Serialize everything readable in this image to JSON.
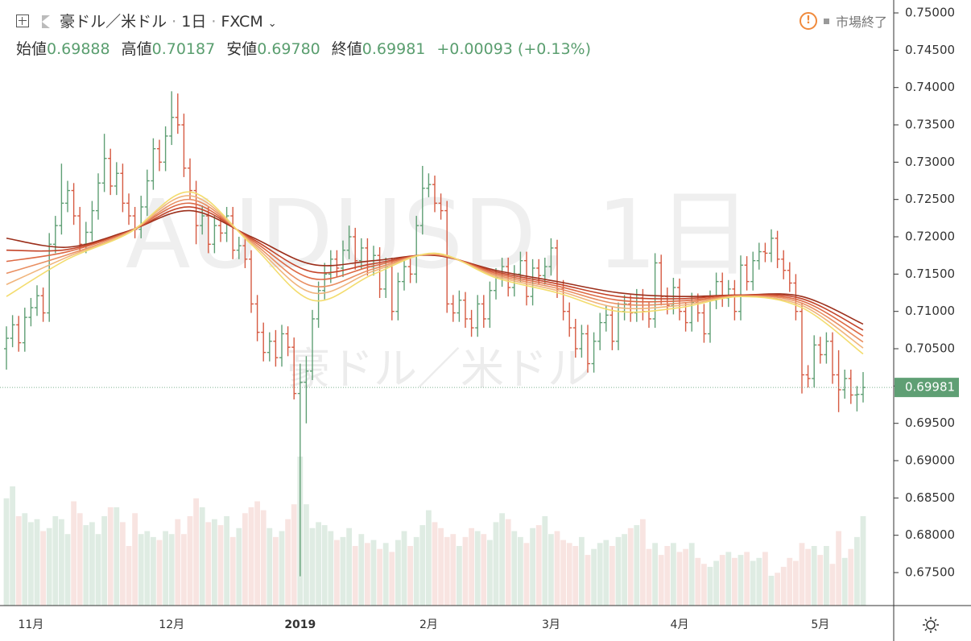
{
  "chart_data": {
    "type": "ohlc",
    "symbol": "豪ドル／米ドル",
    "interval": "1日",
    "source": "FXCM",
    "status": "市場終了",
    "watermark": "AUDUSD, 1日",
    "watermark_sub": "豪ドル／米ドル",
    "legend": [
      {
        "label": "始値",
        "value": "0.69888"
      },
      {
        "label": "高値",
        "value": "0.70187"
      },
      {
        "label": "安値",
        "value": "0.69780"
      },
      {
        "label": "終値",
        "value": "0.69981"
      }
    ],
    "change": "+0.00093",
    "change_pct": "(+0.13%)",
    "up_color": "#5f9f74",
    "down_color": "#d65a42",
    "categories": [
      null,
      null,
      null,
      null,
      "11月",
      null,
      null,
      null,
      null,
      null,
      null,
      null,
      null,
      null,
      null,
      null,
      null,
      null,
      null,
      null,
      null,
      null,
      null,
      null,
      null,
      null,
      null,
      "12月",
      null,
      null,
      null,
      null,
      null,
      null,
      null,
      null,
      null,
      null,
      null,
      null,
      null,
      null,
      null,
      null,
      null,
      null,
      null,
      null,
      "2019",
      null,
      null,
      null,
      null,
      null,
      null,
      null,
      null,
      null,
      null,
      null,
      null,
      null,
      null,
      null,
      null,
      null,
      null,
      null,
      null,
      "2月",
      null,
      null,
      null,
      null,
      null,
      null,
      null,
      null,
      null,
      null,
      null,
      null,
      null,
      null,
      null,
      null,
      null,
      null,
      null,
      "3月",
      null,
      null,
      null,
      null,
      null,
      null,
      null,
      null,
      null,
      null,
      null,
      null,
      null,
      null,
      null,
      null,
      null,
      null,
      null,
      null,
      "4月",
      null,
      null,
      null,
      null,
      null,
      null,
      null,
      null,
      null,
      null,
      null,
      null,
      null,
      null,
      null,
      null,
      null,
      null,
      null,
      null,
      null,
      null,
      "5月",
      null,
      null,
      null,
      null,
      null,
      null,
      null
    ],
    "open": [
      0.705,
      0.7064,
      0.7082,
      0.7058,
      0.7092,
      0.7105,
      0.7121,
      0.7098,
      0.719,
      0.7215,
      0.7245,
      0.7262,
      0.7228,
      0.719,
      0.7206,
      0.7235,
      0.7272,
      0.7305,
      0.7268,
      0.7285,
      0.7245,
      0.7228,
      0.721,
      0.724,
      0.7275,
      0.7318,
      0.73,
      0.7335,
      0.736,
      0.735,
      0.7292,
      0.7262,
      0.7215,
      0.7228,
      0.719,
      0.7215,
      0.7205,
      0.7228,
      0.7182,
      0.7188,
      0.717,
      0.711,
      0.7072,
      0.7045,
      0.706,
      0.7038,
      0.707,
      0.7052,
      0.699,
      0.7005,
      0.702,
      0.709,
      0.7128,
      0.715,
      0.717,
      0.7158,
      0.7182,
      0.72,
      0.7168,
      0.7185,
      0.716,
      0.7175,
      0.713,
      0.716,
      0.71,
      0.714,
      0.716,
      0.715,
      0.7215,
      0.7265,
      0.727,
      0.7245,
      0.7235,
      0.711,
      0.7098,
      0.7115,
      0.709,
      0.7078,
      0.711,
      0.709,
      0.7128,
      0.7145,
      0.716,
      0.7132,
      0.715,
      0.7168,
      0.712,
      0.7158,
      0.7148,
      0.716,
      0.7185,
      0.713,
      0.71,
      0.7078,
      0.705,
      0.707,
      0.703,
      0.706,
      0.7085,
      0.7095,
      0.706,
      0.71,
      0.711,
      0.7098,
      0.7118,
      0.71,
      0.709,
      0.7165,
      0.712,
      0.7108,
      0.7132,
      0.71,
      0.7085,
      0.7112,
      0.7098,
      0.707,
      0.7115,
      0.714,
      0.7118,
      0.713,
      0.71,
      0.7162,
      0.714,
      0.7168,
      0.718,
      0.7178,
      0.7198,
      0.717,
      0.7155,
      0.7138,
      0.71,
      0.7015,
      0.701,
      0.7055,
      0.7042,
      0.706,
      0.7015,
      0.6995,
      0.701,
      0.6988,
      0.69888
    ],
    "high": [
      0.708,
      0.7095,
      0.7094,
      0.7105,
      0.7118,
      0.7135,
      0.7132,
      0.7205,
      0.7228,
      0.7298,
      0.7275,
      0.7272,
      0.724,
      0.722,
      0.7248,
      0.7285,
      0.7338,
      0.7318,
      0.73,
      0.7298,
      0.7258,
      0.724,
      0.7255,
      0.729,
      0.7332,
      0.733,
      0.7348,
      0.7395,
      0.7392,
      0.7365,
      0.7305,
      0.7275,
      0.7242,
      0.724,
      0.7228,
      0.7228,
      0.724,
      0.724,
      0.72,
      0.72,
      0.7182,
      0.7122,
      0.7085,
      0.7072,
      0.7075,
      0.7082,
      0.708,
      0.7065,
      0.703,
      0.704,
      0.7102,
      0.714,
      0.7165,
      0.7182,
      0.7182,
      0.7195,
      0.7215,
      0.7212,
      0.7198,
      0.7198,
      0.7188,
      0.7186,
      0.7172,
      0.7172,
      0.7152,
      0.7172,
      0.7172,
      0.7228,
      0.7295,
      0.7285,
      0.7282,
      0.7258,
      0.7248,
      0.7122,
      0.7128,
      0.7126,
      0.7102,
      0.7122,
      0.7122,
      0.714,
      0.7158,
      0.7172,
      0.7172,
      0.7162,
      0.718,
      0.718,
      0.717,
      0.717,
      0.7172,
      0.7198,
      0.7196,
      0.7142,
      0.7112,
      0.709,
      0.7082,
      0.7082,
      0.7072,
      0.7098,
      0.7108,
      0.7106,
      0.7112,
      0.7122,
      0.7122,
      0.713,
      0.713,
      0.7112,
      0.7178,
      0.7176,
      0.7132,
      0.7145,
      0.7144,
      0.7112,
      0.7125,
      0.7124,
      0.711,
      0.7128,
      0.7152,
      0.7152,
      0.7142,
      0.7142,
      0.7175,
      0.7174,
      0.718,
      0.7192,
      0.7192,
      0.721,
      0.7208,
      0.7182,
      0.7166,
      0.715,
      0.7112,
      0.7028,
      0.7068,
      0.7066,
      0.7072,
      0.7072,
      0.7048,
      0.7022,
      0.7022,
      0.7,
      0.70187
    ],
    "low": [
      0.7022,
      0.7052,
      0.7046,
      0.7046,
      0.708,
      0.7094,
      0.7086,
      0.7086,
      0.7178,
      0.7203,
      0.7233,
      0.7216,
      0.718,
      0.7178,
      0.7194,
      0.7223,
      0.726,
      0.7256,
      0.7256,
      0.7233,
      0.7216,
      0.7198,
      0.7198,
      0.7228,
      0.7263,
      0.7288,
      0.7288,
      0.7323,
      0.7338,
      0.728,
      0.725,
      0.719,
      0.7203,
      0.7178,
      0.7178,
      0.7193,
      0.7193,
      0.717,
      0.717,
      0.7158,
      0.7098,
      0.706,
      0.7033,
      0.7033,
      0.7026,
      0.7026,
      0.704,
      0.6982,
      0.6745,
      0.695,
      0.7008,
      0.7078,
      0.7116,
      0.7138,
      0.7146,
      0.7146,
      0.717,
      0.7156,
      0.7156,
      0.7148,
      0.7148,
      0.7118,
      0.7118,
      0.7088,
      0.7088,
      0.7128,
      0.7138,
      0.7138,
      0.7203,
      0.7253,
      0.7233,
      0.7223,
      0.7098,
      0.7086,
      0.7086,
      0.7078,
      0.7066,
      0.7066,
      0.7078,
      0.7078,
      0.7116,
      0.7133,
      0.712,
      0.712,
      0.7138,
      0.7108,
      0.7108,
      0.7136,
      0.7136,
      0.7148,
      0.7118,
      0.7088,
      0.7066,
      0.7038,
      0.7038,
      0.7018,
      0.7018,
      0.7048,
      0.7073,
      0.7048,
      0.7048,
      0.7088,
      0.7086,
      0.7086,
      0.7088,
      0.7078,
      0.7078,
      0.7108,
      0.7096,
      0.7096,
      0.7088,
      0.7073,
      0.7073,
      0.7086,
      0.7058,
      0.7058,
      0.7103,
      0.7106,
      0.7106,
      0.7088,
      0.7088,
      0.7128,
      0.7128,
      0.7156,
      0.7166,
      0.7166,
      0.7158,
      0.7143,
      0.7126,
      0.7088,
      0.699,
      0.6998,
      0.6998,
      0.703,
      0.703,
      0.7003,
      0.6965,
      0.6983,
      0.6976,
      0.6966,
      0.6978
    ],
    "close": [
      0.7064,
      0.7082,
      0.7058,
      0.7092,
      0.7105,
      0.7121,
      0.7098,
      0.719,
      0.7215,
      0.7245,
      0.7262,
      0.7228,
      0.719,
      0.7206,
      0.7235,
      0.7272,
      0.7305,
      0.7268,
      0.7285,
      0.7245,
      0.7228,
      0.721,
      0.724,
      0.7275,
      0.7318,
      0.73,
      0.7335,
      0.736,
      0.735,
      0.7292,
      0.7262,
      0.7215,
      0.7228,
      0.719,
      0.7215,
      0.7205,
      0.7228,
      0.7182,
      0.7188,
      0.717,
      0.711,
      0.7072,
      0.7045,
      0.706,
      0.7038,
      0.707,
      0.7052,
      0.699,
      0.7005,
      0.702,
      0.709,
      0.7128,
      0.715,
      0.717,
      0.7158,
      0.7182,
      0.72,
      0.7168,
      0.7185,
      0.716,
      0.7175,
      0.713,
      0.716,
      0.71,
      0.714,
      0.716,
      0.715,
      0.7215,
      0.7265,
      0.727,
      0.7245,
      0.7235,
      0.711,
      0.7098,
      0.7115,
      0.709,
      0.7078,
      0.711,
      0.709,
      0.7128,
      0.7145,
      0.716,
      0.7132,
      0.715,
      0.7168,
      0.712,
      0.7158,
      0.7148,
      0.716,
      0.7185,
      0.713,
      0.71,
      0.7078,
      0.705,
      0.707,
      0.703,
      0.706,
      0.7085,
      0.7095,
      0.706,
      0.71,
      0.711,
      0.7098,
      0.7118,
      0.71,
      0.709,
      0.7165,
      0.712,
      0.7108,
      0.7132,
      0.71,
      0.7085,
      0.7112,
      0.7098,
      0.707,
      0.7115,
      0.714,
      0.7118,
      0.713,
      0.71,
      0.7162,
      0.714,
      0.7168,
      0.718,
      0.7178,
      0.7198,
      0.717,
      0.7155,
      0.7138,
      0.71,
      0.7015,
      0.701,
      0.7055,
      0.7042,
      0.706,
      0.7015,
      0.6995,
      0.701,
      0.6988,
      0.69888,
      0.69981
    ],
    "volume": [
      72,
      80,
      60,
      62,
      56,
      58,
      50,
      52,
      60,
      58,
      48,
      70,
      62,
      54,
      56,
      48,
      60,
      66,
      66,
      56,
      40,
      62,
      48,
      50,
      46,
      44,
      50,
      48,
      58,
      48,
      60,
      72,
      66,
      56,
      58,
      54,
      60,
      46,
      52,
      62,
      66,
      70,
      64,
      52,
      46,
      50,
      58,
      68,
      100,
      68,
      52,
      56,
      54,
      50,
      44,
      46,
      52,
      40,
      48,
      42,
      44,
      38,
      42,
      36,
      44,
      50,
      40,
      46,
      54,
      64,
      56,
      52,
      46,
      48,
      40,
      46,
      52,
      50,
      48,
      44,
      56,
      62,
      58,
      50,
      46,
      42,
      52,
      54,
      60,
      48,
      50,
      44,
      42,
      40,
      46,
      34,
      38,
      42,
      44,
      40,
      46,
      48,
      52,
      54,
      58,
      38,
      42,
      34,
      40,
      42,
      36,
      38,
      42,
      32,
      28,
      26,
      30,
      34,
      36,
      32,
      34,
      36,
      30,
      32,
      36,
      20,
      22,
      26,
      32,
      30,
      42,
      38,
      40,
      34,
      40,
      28,
      50,
      32,
      38,
      46,
      60
    ],
    "vlim": [
      0,
      100
    ],
    "ma_x": [
      0,
      10,
      20,
      30,
      40,
      50,
      60,
      70,
      80,
      90,
      100,
      110,
      120,
      130,
      140
    ],
    "ma_lines": [
      {
        "color": "#9c2f1b",
        "values": [
          0.7198,
          0.7186,
          0.7208,
          0.7235,
          0.72,
          0.7163,
          0.7168,
          0.7175,
          0.7155,
          0.714,
          0.7125,
          0.712,
          0.7122,
          0.712,
          0.7083
        ]
      },
      {
        "color": "#c4452a",
        "values": [
          0.7182,
          0.7183,
          0.7207,
          0.724,
          0.7198,
          0.7153,
          0.7164,
          0.7176,
          0.7153,
          0.7137,
          0.712,
          0.7117,
          0.7122,
          0.7117,
          0.7075
        ]
      },
      {
        "color": "#dd6a45",
        "values": [
          0.7167,
          0.718,
          0.7207,
          0.7245,
          0.7196,
          0.7144,
          0.7161,
          0.7176,
          0.7151,
          0.7134,
          0.7115,
          0.7114,
          0.7121,
          0.7114,
          0.7067
        ]
      },
      {
        "color": "#e98f62",
        "values": [
          0.7151,
          0.7176,
          0.7206,
          0.725,
          0.7194,
          0.7134,
          0.7157,
          0.7177,
          0.7149,
          0.7131,
          0.711,
          0.7111,
          0.7121,
          0.7111,
          0.7059
        ]
      },
      {
        "color": "#f0b47c",
        "values": [
          0.7136,
          0.7173,
          0.7206,
          0.7255,
          0.7192,
          0.7125,
          0.7154,
          0.7177,
          0.7147,
          0.7128,
          0.7105,
          0.7108,
          0.712,
          0.7108,
          0.7051
        ]
      },
      {
        "color": "#f3dc6e",
        "values": [
          0.712,
          0.717,
          0.7205,
          0.726,
          0.719,
          0.7115,
          0.715,
          0.7178,
          0.7145,
          0.7125,
          0.71,
          0.7105,
          0.712,
          0.7105,
          0.7043
        ]
      }
    ],
    "ylim": [
      0.67058,
      0.75173
    ],
    "yticks": [
      {
        "value": 0.75,
        "label": "0.75000"
      },
      {
        "value": 0.745,
        "label": "0.74500"
      },
      {
        "value": 0.74,
        "label": "0.74000"
      },
      {
        "value": 0.735,
        "label": "0.73500"
      },
      {
        "value": 0.73,
        "label": "0.73000"
      },
      {
        "value": 0.725,
        "label": "0.72500"
      },
      {
        "value": 0.72,
        "label": "0.72000"
      },
      {
        "value": 0.715,
        "label": "0.71500"
      },
      {
        "value": 0.71,
        "label": "0.71000"
      },
      {
        "value": 0.705,
        "label": "0.70500"
      },
      {
        "value": 0.7,
        "label": "0.70000"
      },
      {
        "value": 0.695,
        "label": "0.69500"
      },
      {
        "value": 0.69,
        "label": "0.69000"
      },
      {
        "value": 0.685,
        "label": "0.68500"
      },
      {
        "value": 0.68,
        "label": "0.68000"
      },
      {
        "value": 0.675,
        "label": "0.67500"
      }
    ],
    "grid": false
  }
}
